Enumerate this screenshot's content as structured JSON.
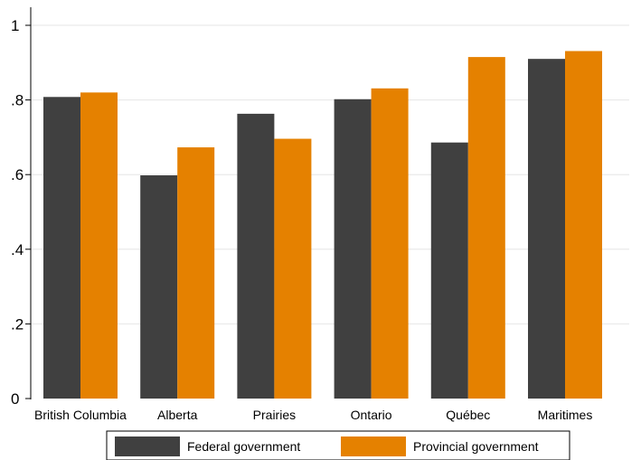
{
  "chart_data": {
    "type": "bar",
    "title": "",
    "xlabel": "",
    "ylabel": "",
    "categories": [
      "British Columbia",
      "Alberta",
      "Prairies",
      "Ontario",
      "Québec",
      "Maritimes"
    ],
    "series": [
      {
        "name": "Federal government",
        "color": "#404040",
        "values": [
          0.808,
          0.598,
          0.763,
          0.802,
          0.686,
          0.91
        ]
      },
      {
        "name": "Provincial government",
        "color": "#e58100",
        "values": [
          0.82,
          0.673,
          0.696,
          0.831,
          0.915,
          0.931
        ]
      }
    ],
    "ylim": [
      0,
      1
    ],
    "yticks": [
      {
        "value": 0,
        "label": "0"
      },
      {
        "value": 0.2,
        "label": ".2"
      },
      {
        "value": 0.4,
        "label": ".4"
      },
      {
        "value": 0.6,
        "label": ".6"
      },
      {
        "value": 0.8,
        "label": ".8"
      },
      {
        "value": 1,
        "label": "1"
      }
    ],
    "grid": true,
    "legend_position": "bottom"
  }
}
